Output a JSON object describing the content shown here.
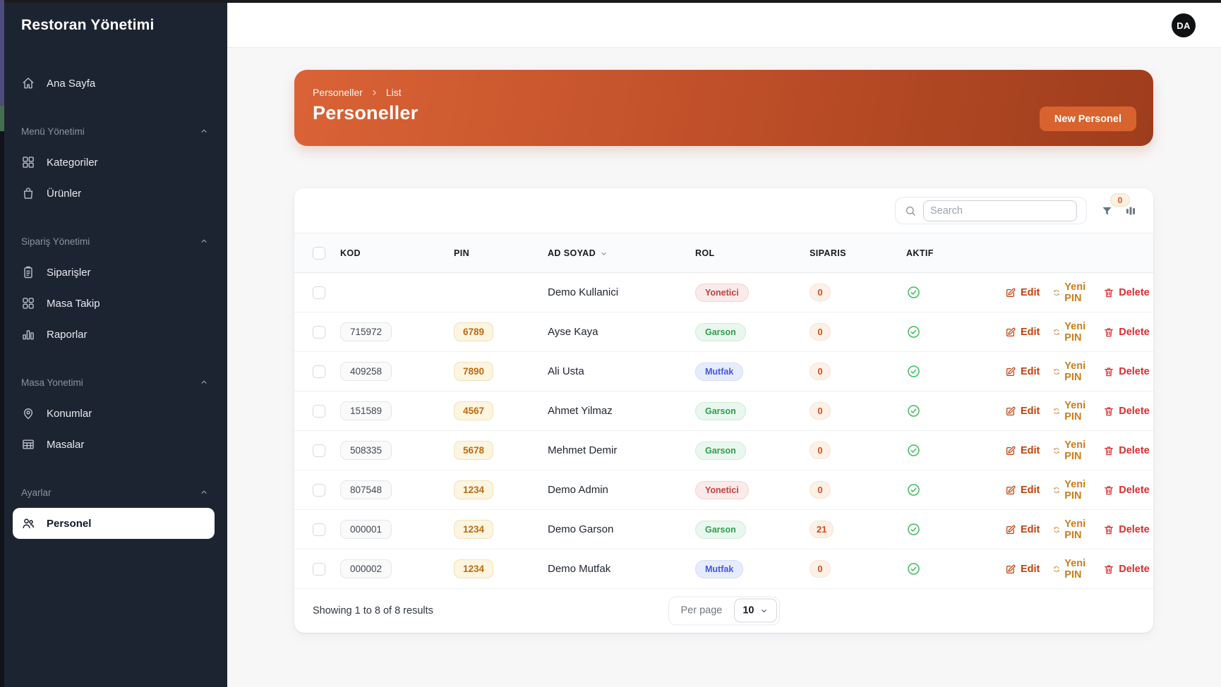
{
  "app": {
    "title": "Restoran Yönetimi",
    "avatar_initials": "DA"
  },
  "sidebar": {
    "home": {
      "label": "Ana Sayfa"
    },
    "sections": [
      {
        "label": "Menü Yönetimi",
        "items": [
          {
            "label": "Kategoriler"
          },
          {
            "label": "Ürünler"
          }
        ]
      },
      {
        "label": "Sipariş Yönetimi",
        "items": [
          {
            "label": "Siparişler"
          },
          {
            "label": "Masa Takip"
          },
          {
            "label": "Raporlar"
          }
        ]
      },
      {
        "label": "Masa Yonetimi",
        "items": [
          {
            "label": "Konumlar"
          },
          {
            "label": "Masalar"
          }
        ]
      },
      {
        "label": "Ayarlar",
        "items": [
          {
            "label": "Personel",
            "active": true
          }
        ]
      }
    ]
  },
  "banner": {
    "breadcrumb": [
      "Personeller",
      "List"
    ],
    "title": "Personeller",
    "new_button": "New Personel"
  },
  "toolbar": {
    "search_placeholder": "Search",
    "filter_badge": "0"
  },
  "table": {
    "headers": [
      "KOD",
      "PIN",
      "AD SOYAD",
      "ROL",
      "SIPARIS",
      "AKTIF"
    ],
    "rows": [
      {
        "kod": "",
        "pin": "",
        "name": "Demo Kullanici",
        "rol": "Yonetici",
        "siparis": "0",
        "aktif": true
      },
      {
        "kod": "715972",
        "pin": "6789",
        "name": "Ayse Kaya",
        "rol": "Garson",
        "siparis": "0",
        "aktif": true
      },
      {
        "kod": "409258",
        "pin": "7890",
        "name": "Ali Usta",
        "rol": "Mutfak",
        "siparis": "0",
        "aktif": true
      },
      {
        "kod": "151589",
        "pin": "4567",
        "name": "Ahmet Yilmaz",
        "rol": "Garson",
        "siparis": "0",
        "aktif": true
      },
      {
        "kod": "508335",
        "pin": "5678",
        "name": "Mehmet Demir",
        "rol": "Garson",
        "siparis": "0",
        "aktif": true
      },
      {
        "kod": "807548",
        "pin": "1234",
        "name": "Demo Admin",
        "rol": "Yonetici",
        "siparis": "0",
        "aktif": true
      },
      {
        "kod": "000001",
        "pin": "1234",
        "name": "Demo Garson",
        "rol": "Garson",
        "siparis": "21",
        "aktif": true
      },
      {
        "kod": "000002",
        "pin": "1234",
        "name": "Demo Mutfak",
        "rol": "Mutfak",
        "siparis": "0",
        "aktif": true
      }
    ]
  },
  "actions": {
    "edit": "Edit",
    "yeni_pin": "Yeni PIN",
    "delete": "Delete"
  },
  "footer": {
    "summary": "Showing 1 to 8 of 8 results",
    "per_page_label": "Per page",
    "per_page_value": "10"
  },
  "icons": {
    "toolbar": [
      "search-icon",
      "funnel-icon",
      "columns-icon"
    ],
    "row_actions": [
      "pencil-square-icon",
      "refresh-icon",
      "trash-icon"
    ],
    "status": "check-circle-icon"
  },
  "colors": {
    "sidebar_bg": "#1d2431",
    "banner_gradient_start": "#da6336",
    "banner_gradient_end": "#9e3d1c",
    "accent_button": "#d8632f",
    "role_yonetici": "#c43d3d",
    "role_garson": "#2f9e4f",
    "role_mutfak": "#4356dd",
    "siparis_badge": "#d1501e",
    "active_check_green": "#3dbb5b",
    "edit_link": "#c2410c",
    "yeni_pin_link": "#c77e1a",
    "delete_link": "#d92d2d"
  }
}
